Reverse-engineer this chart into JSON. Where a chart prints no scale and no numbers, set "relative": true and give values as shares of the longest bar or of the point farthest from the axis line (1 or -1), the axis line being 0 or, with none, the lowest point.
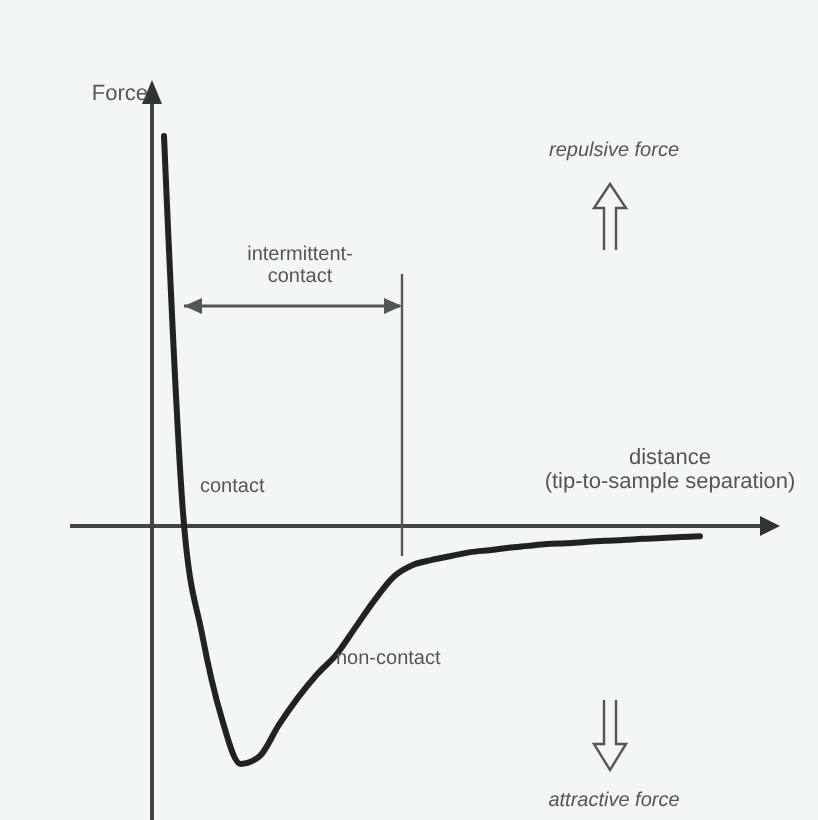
{
  "chart_data": {
    "type": "line",
    "relative": true,
    "ylabel": "Force",
    "xlabel": "distance (tip-to-sample separation)",
    "categories": [
      null,
      null,
      null,
      null,
      null,
      null,
      null,
      null,
      null,
      null,
      null,
      null,
      null,
      null,
      null,
      null,
      null,
      null,
      null,
      null,
      null,
      null,
      null,
      null,
      null,
      null,
      null,
      null,
      null
    ],
    "series": [
      {
        "color": "#222222",
        "values": [
          1,
          0.03,
          -0.28,
          -0.49,
          -0.61,
          -0.59,
          -0.51,
          -0.44,
          -0.38,
          -0.33,
          -0.26,
          -0.19,
          -0.13,
          -0.1,
          -0.087,
          -0.077,
          -0.067,
          -0.062,
          -0.056,
          -0.051,
          -0.046,
          -0.044,
          -0.041,
          -0.038,
          -0.036,
          -0.033,
          -0.031,
          -0.028,
          -0.026
        ]
      }
    ],
    "annotations": [
      "repulsive force",
      "intermittent-contact",
      "contact",
      "non-contact",
      "attractive force"
    ],
    "marker": "none",
    "line_style": "solid"
  }
}
